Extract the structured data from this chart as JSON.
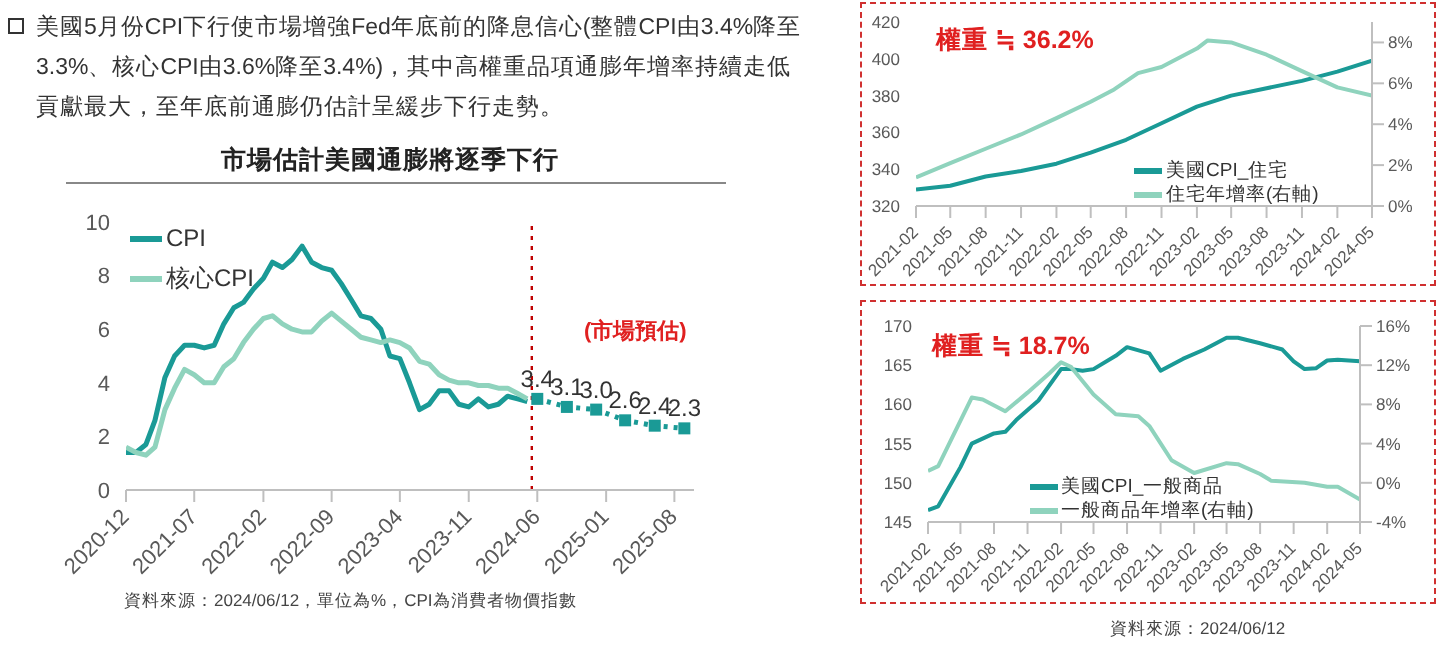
{
  "chart_data": [
    {
      "type": "line",
      "title": "市場估計美國通膨將逐季下行",
      "annotations": [
        "美國5月份CPI下行使市場增強Fed年底前的降息信心(整體CPI由3.4%降至3.3%、核心CPI由3.6%降至3.4%)，其中高權重品項通膨年增率持續走低貢獻最大，至年底前通膨仍估計呈緩步下行走勢。",
        "(市場預估)",
        "資料來源：2024/06/12，單位為%，CPI為消費者物價指數"
      ],
      "x": [
        "2020-12",
        "2021-01",
        "2021-02",
        "2021-03",
        "2021-04",
        "2021-05",
        "2021-06",
        "2021-07",
        "2021-08",
        "2021-09",
        "2021-10",
        "2021-11",
        "2021-12",
        "2022-01",
        "2022-02",
        "2022-03",
        "2022-04",
        "2022-05",
        "2022-06",
        "2022-07",
        "2022-08",
        "2022-09",
        "2022-10",
        "2022-11",
        "2022-12",
        "2023-01",
        "2023-02",
        "2023-03",
        "2023-04",
        "2023-05",
        "2023-06",
        "2023-07",
        "2023-08",
        "2023-09",
        "2023-10",
        "2023-11",
        "2023-12",
        "2024-01",
        "2024-02",
        "2024-03",
        "2024-04",
        "2024-05"
      ],
      "series": [
        {
          "name": "CPI",
          "color": "#1a9a96",
          "values": [
            1.4,
            1.4,
            1.7,
            2.6,
            4.2,
            5.0,
            5.4,
            5.4,
            5.3,
            5.4,
            6.2,
            6.8,
            7.0,
            7.5,
            7.9,
            8.5,
            8.3,
            8.6,
            9.1,
            8.5,
            8.3,
            8.2,
            7.7,
            7.1,
            6.5,
            6.4,
            6.0,
            5.0,
            4.9,
            4.0,
            3.0,
            3.2,
            3.7,
            3.7,
            3.2,
            3.1,
            3.4,
            3.1,
            3.2,
            3.5,
            3.4,
            3.3
          ]
        },
        {
          "name": "核心CPI",
          "color": "#8fd3bd",
          "values": [
            1.6,
            1.4,
            1.3,
            1.6,
            3.0,
            3.8,
            4.5,
            4.3,
            4.0,
            4.0,
            4.6,
            4.9,
            5.5,
            6.0,
            6.4,
            6.5,
            6.2,
            6.0,
            5.9,
            5.9,
            6.3,
            6.6,
            6.3,
            6.0,
            5.7,
            5.6,
            5.5,
            5.6,
            5.5,
            5.3,
            4.8,
            4.7,
            4.3,
            4.1,
            4.0,
            4.0,
            3.9,
            3.9,
            3.8,
            3.8,
            3.6,
            3.4
          ]
        },
        {
          "color": "#1a9a96",
          "x": [
            "2024-06",
            "2024-09",
            "2024-12",
            "2025-03",
            "2025-06",
            "2025-09"
          ],
          "values": [
            3.4,
            3.1,
            3.0,
            2.6,
            2.4,
            2.3
          ],
          "value_labels": [
            "3.4",
            "3.1",
            "3.0",
            "2.6",
            "2.4",
            "2.3"
          ],
          "marker": "square",
          "line_style": "dotted"
        }
      ],
      "xlim": [
        "2020-12",
        "2025-10"
      ],
      "xticks": [
        "2020-12",
        "2021-07",
        "2022-02",
        "2022-09",
        "2023-04",
        "2023-11",
        "2024-06",
        "2025-01",
        "2025-08"
      ],
      "ylim": [
        0,
        10
      ],
      "yticks": [
        0,
        2,
        4,
        6,
        8,
        10
      ],
      "ref_lines": [
        {
          "axis": "x",
          "value": "2024-05-15",
          "color": "#c00000",
          "line_style": "dotted"
        }
      ],
      "legend": "top left"
    },
    {
      "type": "line",
      "annotations": [
        "權重 ≒ 36.2%"
      ],
      "series": [
        {
          "name": "美國CPI_住宅",
          "color": "#1a9a96",
          "x": [
            "2021-02",
            "2021-05",
            "2021-08",
            "2021-11",
            "2022-02",
            "2022-05",
            "2022-08",
            "2022-11",
            "2023-02",
            "2023-05",
            "2023-08",
            "2023-11",
            "2024-02",
            "2024-05"
          ],
          "values": [
            329,
            331,
            336,
            339,
            343,
            349,
            356,
            365,
            374,
            380,
            384,
            388,
            393,
            399
          ]
        },
        {
          "name": "住宅年增率(右軸)",
          "color": "#8fd3bd",
          "axis": "y2",
          "x": [
            "2021-02",
            "2021-05",
            "2021-08",
            "2021-11",
            "2022-02",
            "2022-05",
            "2022-07",
            "2022-09",
            "2022-11",
            "2023-02",
            "2023-03",
            "2023-05",
            "2023-08",
            "2023-11",
            "2024-02",
            "2024-05"
          ],
          "values": [
            1.4,
            2.1,
            2.8,
            3.5,
            4.3,
            5.1,
            5.7,
            6.5,
            6.8,
            7.7,
            8.1,
            8.0,
            7.4,
            6.6,
            5.8,
            5.4
          ]
        }
      ],
      "xlim": [
        "2021-02",
        "2024-05"
      ],
      "xticks": [
        "2021-02",
        "2021-05",
        "2021-08",
        "2021-11",
        "2022-02",
        "2022-05",
        "2022-08",
        "2022-11",
        "2023-02",
        "2023-05",
        "2023-08",
        "2023-11",
        "2024-02",
        "2024-05"
      ],
      "ylim": [
        320,
        420
      ],
      "yticks": [
        320,
        340,
        360,
        380,
        400,
        420
      ],
      "y2lim": [
        0,
        9
      ],
      "y2ticks": [
        {
          "value": 0,
          "label": "0%"
        },
        {
          "value": 2,
          "label": "2%"
        },
        {
          "value": 4,
          "label": "4%"
        },
        {
          "value": 6,
          "label": "6%"
        },
        {
          "value": 8,
          "label": "8%"
        }
      ],
      "legend": "bottom right"
    },
    {
      "type": "line",
      "annotations": [
        "權重 ≒ 18.7%",
        "資料來源：2024/06/12"
      ],
      "series": [
        {
          "name": "美國CPI_一般商品",
          "color": "#1a9a96",
          "x": [
            "2021-02",
            "2021-03",
            "2021-05",
            "2021-06",
            "2021-08",
            "2021-09",
            "2021-10",
            "2021-12",
            "2022-02",
            "2022-03",
            "2022-04",
            "2022-05",
            "2022-07",
            "2022-08",
            "2022-10",
            "2022-11",
            "2023-01",
            "2023-03",
            "2023-05",
            "2023-06",
            "2023-08",
            "2023-10",
            "2023-11",
            "2023-12",
            "2024-01",
            "2024-02",
            "2024-03",
            "2024-05"
          ],
          "values": [
            146.5,
            147,
            152,
            155,
            156.3,
            156.5,
            158,
            160.5,
            164.5,
            164.5,
            164.3,
            164.5,
            166.2,
            167.3,
            166.5,
            164.3,
            165.8,
            167,
            168.5,
            168.5,
            167.8,
            167,
            165.5,
            164.5,
            164.6,
            165.6,
            165.7,
            165.5
          ]
        },
        {
          "name": "一般商品年增率(右軸)",
          "color": "#8fd3bd",
          "axis": "y2",
          "x": [
            "2021-02",
            "2021-03",
            "2021-06",
            "2021-07",
            "2021-09",
            "2021-11",
            "2022-01",
            "2022-02",
            "2022-03",
            "2022-05",
            "2022-07",
            "2022-09",
            "2022-10",
            "2022-12",
            "2023-02",
            "2023-05",
            "2023-06",
            "2023-08",
            "2023-09",
            "2023-12",
            "2024-02",
            "2024-03",
            "2024-05"
          ],
          "values": [
            1.2,
            1.7,
            8.7,
            8.5,
            7.3,
            9.2,
            11.2,
            12.3,
            11.8,
            9.0,
            7.0,
            6.8,
            5.8,
            2.3,
            1.0,
            2.0,
            1.9,
            0.9,
            0.2,
            0.0,
            -0.4,
            -0.4,
            -1.7
          ]
        }
      ],
      "xlim": [
        "2021-02",
        "2024-05"
      ],
      "xticks": [
        "2021-02",
        "2021-05",
        "2021-08",
        "2021-11",
        "2022-02",
        "2022-05",
        "2022-08",
        "2022-11",
        "2023-02",
        "2023-05",
        "2023-08",
        "2023-11",
        "2024-02",
        "2024-05"
      ],
      "ylim": [
        145,
        170
      ],
      "yticks": [
        145,
        150,
        155,
        160,
        165,
        170
      ],
      "y2lim": [
        -4,
        16
      ],
      "y2ticks": [
        {
          "value": -4,
          "label": "-4%"
        },
        {
          "value": 0,
          "label": "0%"
        },
        {
          "value": 4,
          "label": "4%"
        },
        {
          "value": 8,
          "label": "8%"
        },
        {
          "value": 12,
          "label": "12%"
        },
        {
          "value": 16,
          "label": "16%"
        }
      ],
      "legend": "bottom"
    }
  ]
}
